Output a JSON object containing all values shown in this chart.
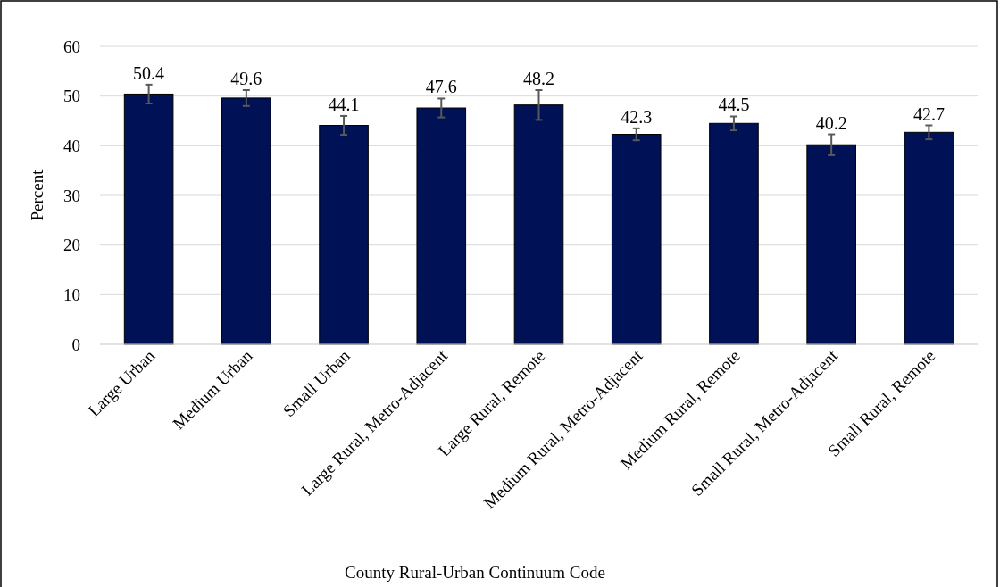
{
  "chart_data": {
    "type": "bar",
    "xlabel": "County Rural-Urban Continuum Code",
    "ylabel": "Percent",
    "categories": [
      "Large Urban",
      "Medium Urban",
      "Small Urban",
      "Large Rural, Metro-Adjacent",
      "Large Rural, Remote",
      "Medium Rural, Metro-Adjacent",
      "Medium Rural, Remote",
      "Small Rural, Metro-Adjacent",
      "Small Rural, Remote"
    ],
    "values": [
      50.4,
      49.6,
      44.1,
      47.6,
      48.2,
      42.3,
      44.5,
      40.2,
      42.7
    ],
    "errors": [
      1.9,
      1.6,
      1.9,
      1.9,
      3.0,
      1.2,
      1.4,
      2.1,
      1.4
    ],
    "color": "#001155",
    "data_labels": true,
    "ylim": [
      0,
      60
    ],
    "yticks": [
      0,
      10,
      20,
      30,
      40,
      50,
      60
    ],
    "grid": "y"
  }
}
